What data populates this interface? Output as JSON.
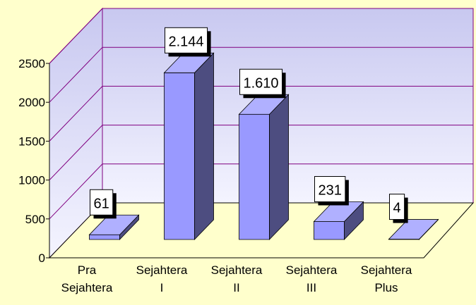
{
  "chart_data": {
    "type": "bar3d",
    "categories": [
      [
        "Pra",
        "Sejahtera"
      ],
      [
        "Sejahtera",
        "I"
      ],
      [
        "Sejahtera",
        "II"
      ],
      [
        "Sejahtera",
        "III"
      ],
      [
        "Sejahtera",
        "Plus"
      ]
    ],
    "values": [
      61,
      2144,
      1610,
      231,
      4
    ],
    "value_labels": [
      "61",
      "2.144",
      "1.610",
      "231",
      "4"
    ],
    "color": "#9999ff",
    "ylim": [
      0,
      2500
    ],
    "yticks": [
      0,
      500,
      1000,
      1500,
      2000,
      2500
    ],
    "grid": true
  }
}
